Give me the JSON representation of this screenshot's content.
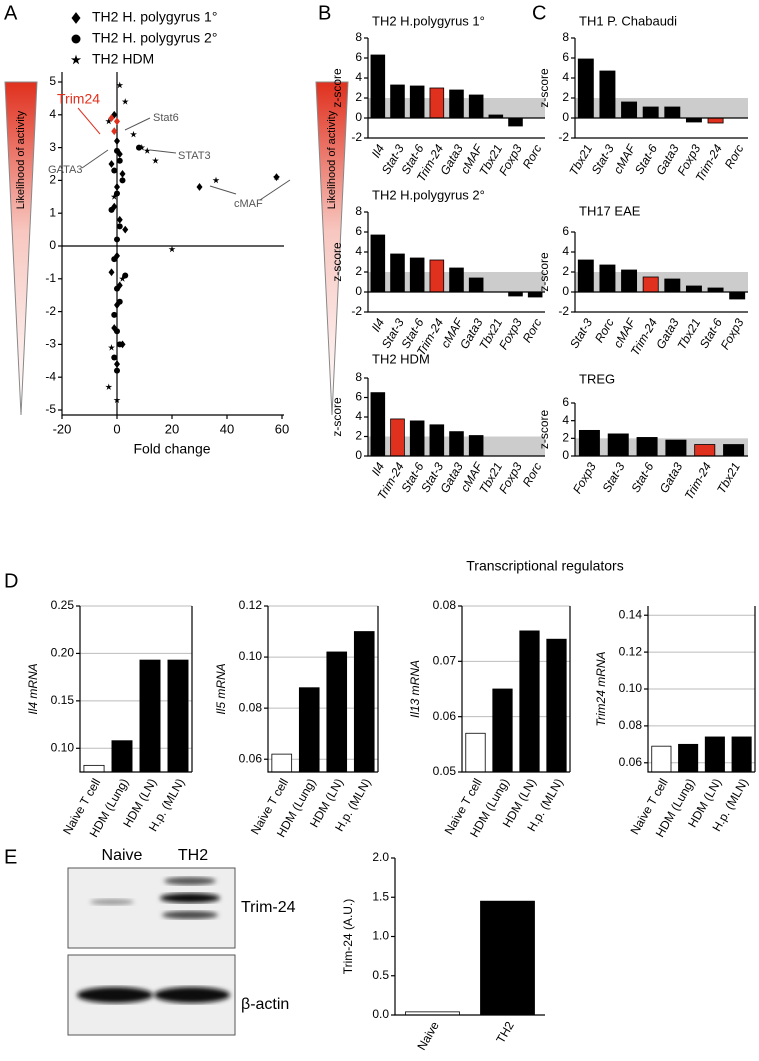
{
  "panel_labels": [
    "A",
    "B",
    "C",
    "D",
    "E"
  ],
  "gradient_label": "Likelihood of activity",
  "section_title": "Transcriptional regulators",
  "blot": {
    "lanes": [
      "Naive",
      "TH2"
    ],
    "bands": [
      "Trim-24",
      "β-actin"
    ]
  },
  "chart_data": [
    {
      "type": "scatter",
      "xlabel": "Fold change",
      "xlim": [
        -20,
        60
      ],
      "xticks": [
        -20,
        0,
        20,
        40,
        60
      ],
      "ylim": [
        -5,
        5
      ],
      "yticks": [
        -5,
        -4,
        -3,
        -2,
        -1,
        0,
        1,
        2,
        3,
        4,
        5
      ],
      "annotations": [
        "Trim24",
        "Stat6",
        "STAT3",
        "GATA3",
        "cMAF"
      ],
      "annotation_colors": [
        "#e0301e",
        "#555",
        "#555",
        "#555",
        "#555"
      ],
      "series": [
        {
          "name": "TH2 H. polygyrus 1°",
          "marker": "diamond",
          "color": "#000",
          "x": [
            -1,
            0,
            1,
            -2,
            2,
            0,
            -1,
            1,
            3,
            0,
            -2,
            1,
            0,
            30,
            -1,
            2,
            0,
            58
          ],
          "y": [
            4.0,
            3.2,
            2.8,
            2.5,
            2.2,
            1.8,
            1.2,
            0.8,
            0.5,
            -0.3,
            -0.8,
            -1.2,
            -1.8,
            1.8,
            -2.5,
            -3.0,
            -3.6,
            2.1
          ]
        },
        {
          "name": "TH2 H. polygyrus 2°",
          "marker": "circle",
          "color": "#000",
          "x": [
            0,
            1,
            -1,
            2,
            0,
            -2,
            1,
            0,
            -1,
            3,
            0,
            1,
            -1,
            8,
            0,
            1,
            -1,
            0
          ],
          "y": [
            2.9,
            2.6,
            2.3,
            2.0,
            1.6,
            1.1,
            0.6,
            0.2,
            -0.4,
            -0.9,
            -1.3,
            -1.7,
            -2.1,
            3.0,
            -2.6,
            -3.0,
            -3.4,
            -3.8
          ]
        },
        {
          "name": "TH2  HDM",
          "marker": "star",
          "color": "#000",
          "x": [
            1,
            3,
            -3,
            6,
            11,
            14,
            20,
            -3,
            0,
            -1,
            2,
            9,
            -2,
            36,
            58
          ],
          "y": [
            4.9,
            4.4,
            3.8,
            3.4,
            2.9,
            2.6,
            -0.1,
            -4.3,
            -4.7,
            1.5,
            -1.0,
            3.0,
            -3.1,
            2.0,
            2.1
          ]
        },
        {
          "name": "Trim24",
          "marker": "diamond",
          "color": "#e0301e",
          "x": [
            -2,
            -1,
            0
          ],
          "y": [
            3.9,
            3.5,
            3.8
          ]
        }
      ]
    },
    {
      "type": "bar",
      "title": "TH2 H.polygyrus 1°",
      "ylabel": "z-score",
      "threshold": 2,
      "categories": [
        "Il4",
        "Stat-3",
        "Stat-6",
        "Trim-24",
        "Gata3",
        "cMAF",
        "Tbx21",
        "Foxp3",
        "Rorc"
      ],
      "values": [
        6.3,
        3.3,
        3.2,
        3.0,
        2.8,
        2.3,
        0.3,
        -0.8,
        0
      ],
      "colors": [
        "#000",
        "#000",
        "#000",
        "#e0301e",
        "#000",
        "#000",
        "#000",
        "#000",
        "#000"
      ],
      "ylim": [
        -2,
        8
      ],
      "yticks": [
        -2,
        0,
        2,
        4,
        6,
        8
      ]
    },
    {
      "type": "bar",
      "title": "TH2 H.polygyrus 2°",
      "ylabel": "z-score",
      "threshold": 2,
      "categories": [
        "Il4",
        "Stat-3",
        "Stat-6",
        "Trim-24",
        "cMAF",
        "Gata3",
        "Tbx21",
        "Foxp3",
        "Rorc"
      ],
      "values": [
        5.7,
        3.8,
        3.4,
        3.2,
        2.4,
        1.4,
        0,
        -0.4,
        -0.5
      ],
      "colors": [
        "#000",
        "#000",
        "#000",
        "#e0301e",
        "#000",
        "#000",
        "#000",
        "#000",
        "#000"
      ],
      "ylim": [
        -2,
        8
      ],
      "yticks": [
        -2,
        0,
        2,
        4,
        6,
        8
      ]
    },
    {
      "type": "bar",
      "title": "TH2 HDM",
      "ylabel": "z-score",
      "threshold": 2,
      "categories": [
        "Il4",
        "Trim-24",
        "Stat-6",
        "Stat-3",
        "Gata3",
        "cMAF",
        "Tbx21",
        "Foxp3",
        "Rorc"
      ],
      "values": [
        6.5,
        3.8,
        3.6,
        3.2,
        2.5,
        2.1,
        0,
        0,
        0
      ],
      "colors": [
        "#000",
        "#e0301e",
        "#000",
        "#000",
        "#000",
        "#000",
        "#000",
        "#000",
        "#000"
      ],
      "ylim": [
        0,
        8
      ],
      "yticks": [
        0,
        2,
        4,
        6,
        8
      ]
    },
    {
      "type": "bar",
      "title": "TH1 P. Chabaudi",
      "ylabel": "z-score",
      "threshold": 2,
      "categories": [
        "Tbx21",
        "Stat-3",
        "cMAF",
        "Stat-6",
        "Gata3",
        "Foxp3",
        "Trim-24",
        "Rorc"
      ],
      "values": [
        5.9,
        4.7,
        1.6,
        1.1,
        1.1,
        -0.4,
        -0.5,
        0
      ],
      "colors": [
        "#000",
        "#000",
        "#000",
        "#000",
        "#000",
        "#000",
        "#e0301e",
        "#000"
      ],
      "ylim": [
        -2,
        8
      ],
      "yticks": [
        -2,
        0,
        2,
        4,
        6,
        8
      ]
    },
    {
      "type": "bar",
      "title": "TH17 EAE",
      "ylabel": "z-score",
      "threshold": 2,
      "categories": [
        "Stat-3",
        "Rorc",
        "cMAF",
        "Trim-24",
        "Gata3",
        "Tbx21",
        "Stat-6",
        "Foxp3"
      ],
      "values": [
        3.2,
        2.7,
        2.2,
        1.5,
        1.3,
        0.6,
        0.4,
        -0.7
      ],
      "colors": [
        "#000",
        "#000",
        "#000",
        "#e0301e",
        "#000",
        "#000",
        "#000",
        "#000"
      ],
      "ylim": [
        -2,
        6
      ],
      "yticks": [
        -2,
        0,
        2,
        4,
        6
      ]
    },
    {
      "type": "bar",
      "title": "TREG",
      "ylabel": "z-score",
      "threshold": 2,
      "categories": [
        "Foxp3",
        "Stat-3",
        "Stat-6",
        "Gata3",
        "Trim-24",
        "Tbx21"
      ],
      "values": [
        2.9,
        2.5,
        2.1,
        1.8,
        1.3,
        1.3
      ],
      "colors": [
        "#000",
        "#000",
        "#000",
        "#000",
        "#e0301e",
        "#000"
      ],
      "ylim": [
        0,
        6
      ],
      "yticks": [
        0,
        2,
        4,
        6
      ]
    },
    {
      "type": "bar",
      "ylabel": "Il4 mRNA",
      "grid": true,
      "categories": [
        "Naive T cell",
        "HDM (Lung)",
        "HDM (LN)",
        "H.p. (MLN)"
      ],
      "values": [
        0.082,
        0.108,
        0.193,
        0.193
      ],
      "colors": [
        "#fff",
        "#000",
        "#000",
        "#000"
      ],
      "ylim": [
        0.075,
        0.25
      ],
      "yticks": [
        {
          "value": 0.1,
          "label": "0.10"
        },
        0.15,
        {
          "value": 0.2,
          "label": "0.20"
        },
        0.25
      ]
    },
    {
      "type": "bar",
      "ylabel": "Il5 mRNA",
      "grid": true,
      "categories": [
        "Naive T cell",
        "HDM (Lung)",
        "HDM (LN)",
        "H.p. (MLN)"
      ],
      "values": [
        0.062,
        0.088,
        0.102,
        0.11
      ],
      "colors": [
        "#fff",
        "#000",
        "#000",
        "#000"
      ],
      "ylim": [
        0.055,
        0.12
      ],
      "yticks": [
        0.06,
        0.08,
        {
          "value": 0.1,
          "label": "0.10"
        },
        0.12
      ]
    },
    {
      "type": "bar",
      "ylabel": "Il13 mRNA",
      "grid": true,
      "categories": [
        "Naive T cell",
        "HDM (Lung)",
        "HDM (LN)",
        "H.p. (MLN)"
      ],
      "values": [
        0.057,
        0.065,
        0.0755,
        0.074
      ],
      "colors": [
        "#fff",
        "#000",
        "#000",
        "#000"
      ],
      "ylim": [
        0.05,
        0.08
      ],
      "yticks": [
        0.05,
        0.06,
        0.07,
        0.08
      ]
    },
    {
      "type": "bar",
      "ylabel": "Trim24 mRNA",
      "grid": true,
      "categories": [
        "Naive T cell",
        "HDM (Lung)",
        "HDM (LN)",
        "H.p. (MLN)"
      ],
      "values": [
        0.069,
        0.07,
        0.074,
        0.074
      ],
      "colors": [
        "#fff",
        "#000",
        "#000",
        "#000"
      ],
      "ylim": [
        0.055,
        0.145
      ],
      "yticks": [
        0.06,
        0.08,
        {
          "value": 0.1,
          "label": "0.10"
        },
        0.12,
        0.14
      ]
    },
    {
      "type": "bar",
      "ylabel": "Trim-24 (A.U.)",
      "categories": [
        "Naive",
        "TH2"
      ],
      "values": [
        0.04,
        1.45
      ],
      "colors": [
        "#fff",
        "#000"
      ],
      "ylim": [
        0,
        2
      ],
      "yticks": [
        {
          "value": 0,
          "label": "0.0"
        },
        0.5,
        {
          "value": 1,
          "label": "1.0"
        },
        1.5,
        {
          "value": 2,
          "label": "2.0"
        }
      ]
    }
  ]
}
